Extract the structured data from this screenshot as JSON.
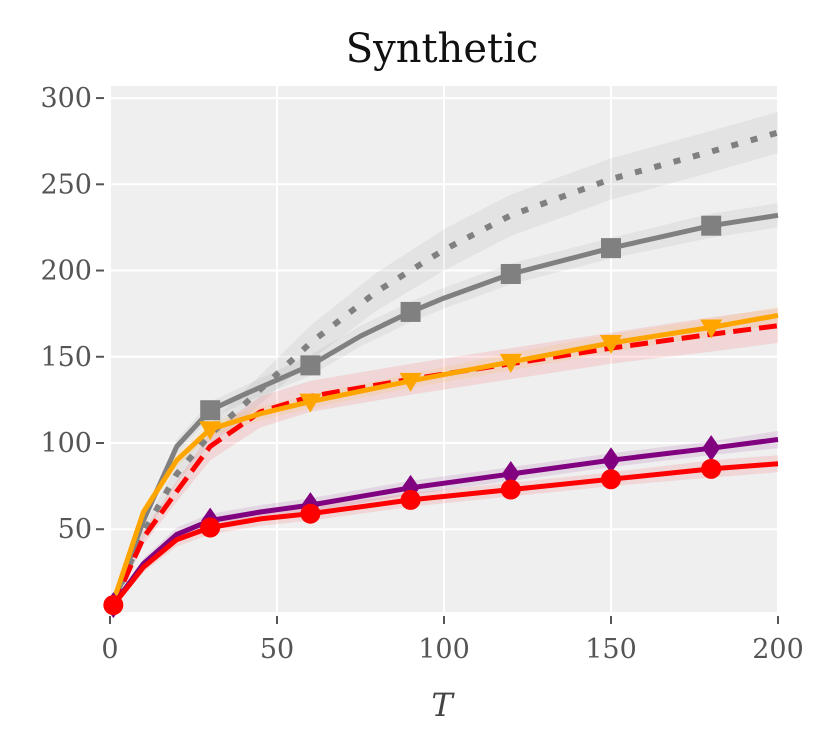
{
  "chart_data": {
    "type": "line",
    "title": "Synthetic",
    "xlabel": "T",
    "ylabel": "",
    "xlim": [
      0,
      200
    ],
    "ylim": [
      2,
      307
    ],
    "xticks": [
      0,
      50,
      100,
      150,
      200
    ],
    "xtick_labels": [
      "0",
      "50",
      "100",
      "150",
      "200"
    ],
    "yticks": [
      50,
      100,
      150,
      200,
      250,
      300
    ],
    "ytick_labels": [
      "50",
      "100",
      "150",
      "200",
      "250",
      "300"
    ],
    "grid": true,
    "colors": {
      "background": "#efefef",
      "grid": "#ffffff",
      "gray": "#808080",
      "orange": "#ffa500",
      "red": "#ff0000",
      "purple": "#800080"
    },
    "series": [
      {
        "name": "gray-dotted",
        "color": "#808080",
        "linestyle": "dotted",
        "marker": "none",
        "x": [
          1,
          10,
          20,
          30,
          40,
          60,
          80,
          100,
          120,
          150,
          180,
          200
        ],
        "y": [
          8,
          48,
          82,
          105,
          122,
          158,
          188,
          212,
          232,
          253,
          269,
          280
        ],
        "band": [
          3,
          4,
          5,
          6,
          8,
          10,
          11,
          12,
          12,
          12,
          12,
          12
        ]
      },
      {
        "name": "gray-squares",
        "color": "#808080",
        "linestyle": "solid",
        "marker": "square",
        "x": [
          1,
          10,
          20,
          30,
          40,
          60,
          75,
          90,
          100,
          120,
          150,
          180,
          200
        ],
        "y": [
          6,
          55,
          98,
          119,
          128,
          145,
          162,
          176,
          184,
          198,
          213,
          226,
          232
        ],
        "band": [
          2,
          3,
          4,
          5,
          5,
          6,
          6,
          6,
          6,
          6,
          6,
          7,
          7
        ],
        "markers_x": [
          30,
          60,
          90,
          120,
          150,
          180
        ],
        "markers_y": [
          119,
          145,
          176,
          198,
          213,
          226
        ]
      },
      {
        "name": "red-dashed",
        "color": "#ff0000",
        "linestyle": "dashed",
        "marker": "none",
        "x": [
          1,
          10,
          20,
          30,
          45,
          60,
          90,
          120,
          150,
          180,
          200
        ],
        "y": [
          6,
          45,
          72,
          98,
          118,
          127,
          137,
          146,
          155,
          163,
          168
        ],
        "band": [
          2,
          4,
          6,
          8,
          9,
          9,
          9,
          9,
          9,
          10,
          10
        ]
      },
      {
        "name": "orange-triangles",
        "color": "#ffa500",
        "linestyle": "solid",
        "marker": "triangle_down",
        "x": [
          1,
          10,
          20,
          30,
          45,
          60,
          90,
          120,
          150,
          180,
          200
        ],
        "y": [
          8,
          60,
          90,
          108,
          117,
          124,
          136,
          147,
          158,
          167,
          174
        ],
        "band": [
          2,
          3,
          4,
          4,
          4,
          4,
          4,
          5,
          5,
          5,
          5
        ],
        "markers_x": [
          30,
          60,
          90,
          120,
          150,
          180
        ],
        "markers_y": [
          108,
          124,
          136,
          147,
          158,
          167
        ]
      },
      {
        "name": "purple-diamonds",
        "color": "#800080",
        "linestyle": "solid",
        "marker": "diamond",
        "x": [
          1,
          10,
          20,
          30,
          45,
          60,
          90,
          120,
          150,
          180,
          200
        ],
        "y": [
          6,
          30,
          47,
          55,
          60,
          64,
          74,
          82,
          90,
          97,
          102
        ],
        "band": [
          2,
          3,
          4,
          4,
          4,
          4,
          4,
          4,
          4,
          4,
          5
        ],
        "markers_x": [
          1,
          30,
          60,
          90,
          120,
          150,
          180
        ],
        "markers_y": [
          6,
          55,
          64,
          74,
          82,
          90,
          97
        ]
      },
      {
        "name": "red-circles",
        "color": "#ff0000",
        "linestyle": "solid",
        "marker": "circle",
        "x": [
          1,
          10,
          20,
          30,
          45,
          60,
          90,
          120,
          150,
          180,
          200
        ],
        "y": [
          6,
          28,
          44,
          51,
          56,
          59,
          67,
          73,
          79,
          85,
          88
        ],
        "band": [
          2,
          3,
          4,
          4,
          4,
          4,
          4,
          4,
          4,
          5,
          5
        ],
        "markers_x": [
          1,
          30,
          60,
          90,
          120,
          150,
          180
        ],
        "markers_y": [
          6,
          51,
          59,
          67,
          73,
          79,
          85
        ]
      }
    ]
  }
}
